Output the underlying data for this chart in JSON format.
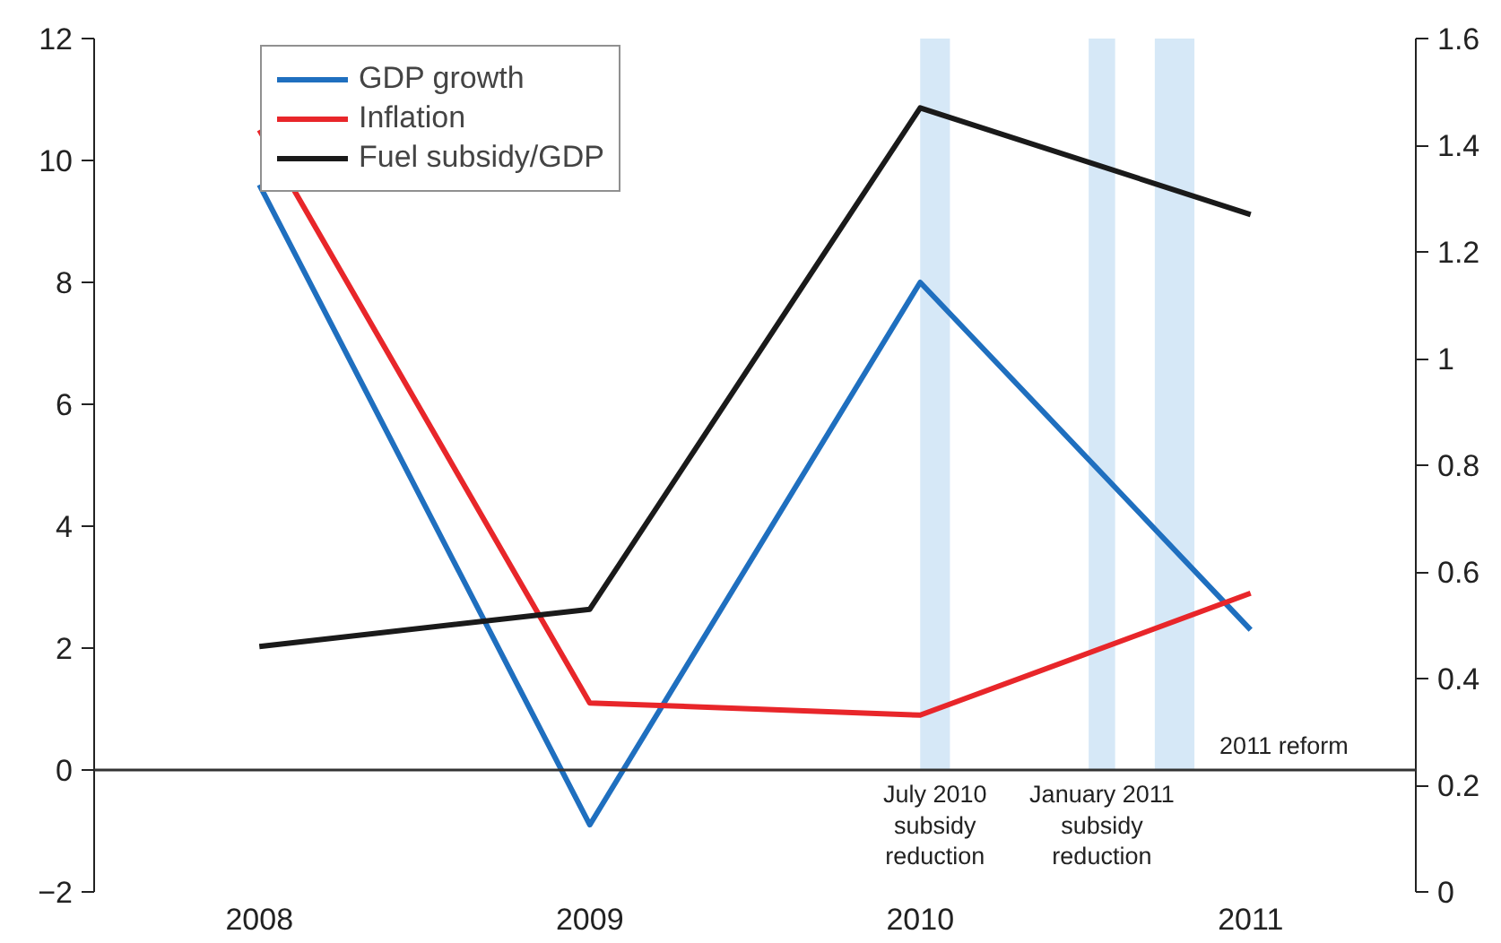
{
  "chart_data": {
    "type": "line",
    "x": [
      2008,
      2009,
      2010,
      2011
    ],
    "series": [
      {
        "name": "GDP growth",
        "color": "#1f6fbf",
        "values": [
          9.6,
          -0.9,
          8.0,
          2.3
        ]
      },
      {
        "name": "Inflation",
        "color": "#e8262a",
        "values": [
          10.5,
          1.1,
          0.9,
          2.9
        ]
      },
      {
        "name": "Fuel subsidy/GDP",
        "color": "#1a1a1a",
        "values": [
          0.46,
          0.53,
          1.47,
          1.27
        ],
        "axis": "y2"
      }
    ],
    "xlim": [
      2007.5,
      2011.5
    ],
    "xticks": [
      2008,
      2009,
      2010,
      2011
    ],
    "ylim": [
      -2,
      12
    ],
    "yticks": [
      {
        "value": -2,
        "label": "−2"
      },
      0,
      2,
      4,
      6,
      8,
      10,
      12
    ],
    "y2lim": [
      0,
      1.6
    ],
    "y2ticks": [
      0,
      0.2,
      0.4,
      0.6,
      0.8,
      1,
      1.2,
      1.4,
      1.6
    ],
    "ref_lines": [
      {
        "axis": "y",
        "value": 0,
        "color": "#333333"
      }
    ],
    "bands": [
      {
        "axis": "x",
        "from": 2010.0,
        "to": 2010.09,
        "label": "July 2010\nsubsidy\nreduction",
        "color": "#d6e8f7"
      },
      {
        "axis": "x",
        "from": 2010.51,
        "to": 2010.59,
        "label": "January 2011\nsubsidy\nreduction",
        "color": "#d6e8f7"
      },
      {
        "axis": "x",
        "from": 2010.71,
        "to": 2010.83,
        "label": "2011 reform",
        "color": "#d6e8f7"
      }
    ],
    "grid": false,
    "legend": "top"
  }
}
